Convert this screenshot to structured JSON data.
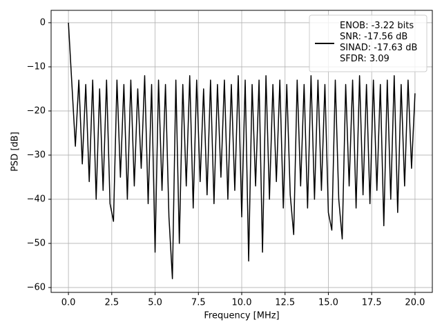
{
  "chart_data": {
    "type": "line",
    "xlabel": "Frequency [MHz]",
    "ylabel": "PSD [dB]",
    "x": [
      0,
      0.2,
      0.4,
      0.6,
      0.8,
      1.0,
      1.2,
      1.4,
      1.6,
      1.8,
      2.0,
      2.2,
      2.4,
      2.6,
      2.8,
      3.0,
      3.2,
      3.4,
      3.6,
      3.8,
      4.0,
      4.2,
      4.4,
      4.6,
      4.8,
      5.0,
      5.2,
      5.4,
      5.6,
      5.8,
      6.0,
      6.2,
      6.4,
      6.6,
      6.8,
      7.0,
      7.2,
      7.4,
      7.6,
      7.8,
      8.0,
      8.2,
      8.4,
      8.6,
      8.8,
      9.0,
      9.2,
      9.4,
      9.6,
      9.8,
      10.0,
      10.2,
      10.4,
      10.6,
      10.8,
      11.0,
      11.2,
      11.4,
      11.6,
      11.8,
      12.0,
      12.2,
      12.4,
      12.6,
      12.8,
      13.0,
      13.2,
      13.4,
      13.6,
      13.8,
      14.0,
      14.2,
      14.4,
      14.6,
      14.8,
      15.0,
      15.2,
      15.4,
      15.6,
      15.8,
      16.0,
      16.2,
      16.4,
      16.6,
      16.8,
      17.0,
      17.2,
      17.4,
      17.6,
      17.8,
      18.0,
      18.2,
      18.4,
      18.6,
      18.8,
      19.0,
      19.2,
      19.4,
      19.6,
      19.8,
      20.0
    ],
    "series": [
      {
        "name": "ENOB: -3.22 bits\nSNR: -17.56 dB\nSINAD: -17.63 dB\nSFDR: 3.09",
        "color": "#000000",
        "values": [
          0,
          -14,
          -28,
          -13,
          -32,
          -14,
          -36,
          -13,
          -40,
          -15,
          -38,
          -13,
          -41,
          -45,
          -13,
          -35,
          -14,
          -40,
          -13,
          -37,
          -15,
          -33,
          -12,
          -41,
          -14,
          -52,
          -13,
          -38,
          -14,
          -44,
          -58,
          -13,
          -50,
          -14,
          -37,
          -12,
          -42,
          -13,
          -36,
          -15,
          -39,
          -13,
          -41,
          -14,
          -35,
          -13,
          -40,
          -14,
          -38,
          -12,
          -44,
          -13,
          -54,
          -14,
          -37,
          -13,
          -52,
          -12,
          -40,
          -14,
          -36,
          -13,
          -42,
          -14,
          -39,
          -48,
          -13,
          -37,
          -14,
          -42,
          -12,
          -40,
          -13,
          -38,
          -14,
          -43,
          -47,
          -13,
          -40,
          -49,
          -14,
          -37,
          -13,
          -42,
          -12,
          -39,
          -14,
          -41,
          -13,
          -38,
          -14,
          -46,
          -13,
          -40,
          -12,
          -43,
          -14,
          -37,
          -13,
          -33,
          -16
        ]
      }
    ],
    "xlim": [
      -1.0,
      21.0
    ],
    "ylim": [
      -61.1,
      2.8
    ],
    "xticks": [
      {
        "value": 0,
        "label": "0.0"
      },
      {
        "value": 2.5,
        "label": "2.5"
      },
      {
        "value": 5,
        "label": "5.0"
      },
      {
        "value": 7.5,
        "label": "7.5"
      },
      {
        "value": 10,
        "label": "10.0"
      },
      {
        "value": 12.5,
        "label": "12.5"
      },
      {
        "value": 15,
        "label": "15.0"
      },
      {
        "value": 17.5,
        "label": "17.5"
      },
      {
        "value": 20,
        "label": "20.0"
      }
    ],
    "yticks": [
      0,
      {
        "value": -10,
        "label": "−10"
      },
      {
        "value": -20,
        "label": "−20"
      },
      {
        "value": -30,
        "label": "−30"
      },
      {
        "value": -40,
        "label": "−40"
      },
      {
        "value": -50,
        "label": "−50"
      },
      {
        "value": -60,
        "label": "−60"
      }
    ],
    "grid": true,
    "legend": "upper right"
  }
}
